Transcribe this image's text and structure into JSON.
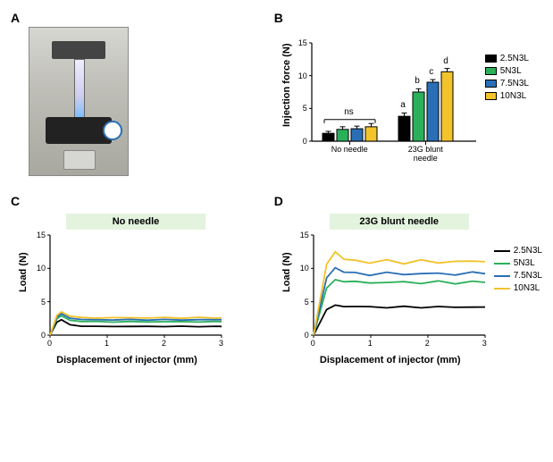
{
  "panels": {
    "A": "A",
    "B": "B",
    "C": "C",
    "D": "D"
  },
  "series_names": [
    "2.5N3L",
    "5N3L",
    "7.5N3L",
    "10N3L"
  ],
  "series_colors": [
    "#000000",
    "#2bb05a",
    "#2a6fb5",
    "#f2c32b"
  ],
  "panelB": {
    "ylabel": "Injection force (N)",
    "ylim": [
      0,
      15
    ],
    "ytick_step": 5,
    "groups": [
      "No needle",
      "23G blunt needle"
    ],
    "values": {
      "No needle": [
        1.2,
        1.8,
        1.9,
        2.2
      ],
      "23G blunt needle": [
        3.8,
        7.5,
        9.0,
        10.6
      ]
    },
    "errors": {
      "No needle": [
        0.3,
        0.4,
        0.4,
        0.5
      ],
      "23G blunt needle": [
        0.5,
        0.5,
        0.4,
        0.5
      ]
    },
    "sig": {
      "ns": "ns",
      "letters": [
        "a",
        "b",
        "c",
        "d"
      ]
    },
    "font_ticks": 9,
    "font_labels": 11,
    "bar_border": "#000000"
  },
  "panelC": {
    "title": "No needle",
    "xlabel": "Displacement of injector (mm)",
    "ylabel": "Load (N)",
    "xlim": [
      0,
      3
    ],
    "xtick_step": 1,
    "ylim": [
      0,
      15
    ],
    "ytick_step": 5,
    "plateau": [
      1.3,
      2.0,
      2.3,
      2.6
    ],
    "peak": [
      2.3,
      2.9,
      3.2,
      3.5
    ],
    "peak_x": 0.2,
    "title_bg": "#e4f3de"
  },
  "panelD": {
    "title": "23G blunt needle",
    "xlabel": "Displacement of injector (mm)",
    "ylabel": "Load (N)",
    "xlim": [
      0,
      3
    ],
    "xtick_step": 1,
    "ylim": [
      0,
      15
    ],
    "ytick_step": 5,
    "plateau": [
      4.2,
      7.9,
      9.2,
      11.0
    ],
    "peak": [
      4.5,
      8.3,
      10.1,
      12.5
    ],
    "peak_x": 0.38,
    "title_bg": "#e4f3de"
  }
}
